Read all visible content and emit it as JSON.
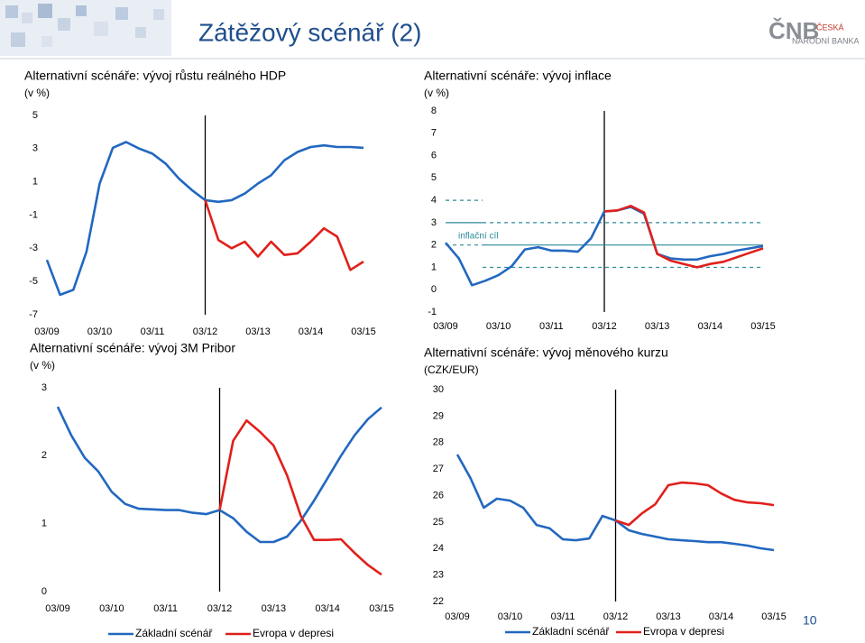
{
  "title": "Zátěžový scénář (2)",
  "logo": {
    "mark": "ČNB",
    "line1": "ČESKÁ",
    "line2": "NÁRODNÍ BANKA"
  },
  "page_number": "10",
  "chart_data": [
    {
      "type": "line",
      "title": "Alternativní scénáře: vývoj růstu reálného HDP",
      "subtitle": "(v %)",
      "categories": [
        "03/09",
        null,
        null,
        null,
        "03/10",
        null,
        null,
        null,
        "03/11",
        null,
        null,
        null,
        "03/12",
        null,
        null,
        null,
        "03/13",
        null,
        null,
        null,
        "03/14",
        null,
        null,
        null,
        "03/15"
      ],
      "series": [
        {
          "color": "#2268c0",
          "values": [
            -3.7,
            -5.8,
            -5.5,
            -3.2,
            0.9,
            3.05,
            3.4,
            3.0,
            2.7,
            2.1,
            1.2,
            0.5,
            -0.1,
            -0.2,
            -0.1,
            0.3,
            0.9,
            1.4,
            2.3,
            2.8,
            3.1,
            3.2,
            3.1,
            3.1,
            3.05
          ]
        },
        {
          "color": "#e0201b",
          "values": [
            null,
            null,
            null,
            null,
            null,
            null,
            null,
            null,
            null,
            null,
            null,
            null,
            -0.1,
            -2.5,
            -3.0,
            -2.6,
            -3.5,
            -2.6,
            -3.4,
            -3.3,
            -2.6,
            -1.8,
            -2.3,
            -4.3,
            -3.8
          ]
        }
      ],
      "ylim": [
        -7,
        5
      ],
      "yticks": [
        5,
        3,
        1,
        -1,
        -3,
        -5,
        -7
      ]
    },
    {
      "type": "line",
      "title": "Alternativní scénáře: vývoj inflace",
      "subtitle": "(v %)",
      "categories": [
        "03/09",
        null,
        null,
        null,
        "03/10",
        null,
        null,
        null,
        "03/11",
        null,
        null,
        null,
        "03/12",
        null,
        null,
        null,
        "03/13",
        null,
        null,
        null,
        "03/14",
        null,
        null,
        null,
        "03/15"
      ],
      "series": [
        {
          "color": "#2268c0",
          "values": [
            2.1,
            1.4,
            0.2,
            0.4,
            0.65,
            1.05,
            1.8,
            1.9,
            1.75,
            1.75,
            1.7,
            2.3,
            3.5,
            3.55,
            3.7,
            3.4,
            1.6,
            1.4,
            1.35,
            1.35,
            1.5,
            1.6,
            1.75,
            1.85,
            1.95
          ]
        },
        {
          "color": "#e0201b",
          "values": [
            null,
            null,
            null,
            null,
            null,
            null,
            null,
            null,
            null,
            null,
            null,
            null,
            3.5,
            3.55,
            3.75,
            3.45,
            1.6,
            1.3,
            1.15,
            1.0,
            1.15,
            1.25,
            1.45,
            1.65,
            1.85
          ]
        }
      ],
      "annotation": "inflační cíl",
      "target": {
        "color": "#2a8a9a",
        "periods": [
          {
            "from": 0,
            "to": 2.8,
            "center": 3,
            "tolerance": 1
          },
          {
            "from": 2.8,
            "to": 24,
            "center": 2,
            "tolerance": 1
          }
        ]
      },
      "ylim": [
        -1,
        8
      ],
      "yticks": [
        8,
        7,
        6,
        5,
        4,
        3,
        2,
        1,
        0,
        -1
      ]
    },
    {
      "type": "line",
      "title": "Alternativní scénáře: vývoj 3M Pribor",
      "subtitle": "(v %)",
      "categories": [
        "03/09",
        null,
        null,
        null,
        "03/10",
        null,
        null,
        null,
        "03/11",
        null,
        null,
        null,
        "03/12",
        null,
        null,
        null,
        "03/13",
        null,
        null,
        null,
        "03/14",
        null,
        null,
        null,
        "03/15"
      ],
      "series": [
        {
          "name": "Základní scénář",
          "color": "#2268c0",
          "values": [
            2.72,
            2.3,
            1.97,
            1.77,
            1.47,
            1.29,
            1.22,
            1.21,
            1.2,
            1.2,
            1.16,
            1.14,
            1.2,
            1.08,
            0.88,
            0.73,
            0.73,
            0.81,
            1.04,
            1.34,
            1.67,
            2.0,
            2.3,
            2.54,
            2.71
          ]
        },
        {
          "name": "Evropa v depresi",
          "color": "#e0201b",
          "values": [
            null,
            null,
            null,
            null,
            null,
            null,
            null,
            null,
            null,
            null,
            null,
            null,
            1.2,
            2.22,
            2.52,
            2.35,
            2.15,
            1.71,
            1.12,
            0.76,
            0.76,
            0.77,
            0.57,
            0.39,
            0.25
          ]
        }
      ],
      "legend": true,
      "ylim": [
        0,
        3
      ],
      "yticks": [
        3,
        2,
        1,
        0
      ]
    },
    {
      "type": "line",
      "title": "Alternativní scénáře: vývoj měnového kurzu",
      "subtitle": "(CZK/EUR)",
      "categories": [
        "03/09",
        null,
        null,
        null,
        "03/10",
        null,
        null,
        null,
        "03/11",
        null,
        null,
        null,
        "03/12",
        null,
        null,
        null,
        "03/13",
        null,
        null,
        null,
        "03/14",
        null,
        null,
        null,
        "03/15"
      ],
      "series": [
        {
          "name": "Základní scénář",
          "color": "#2268c0",
          "values": [
            27.55,
            26.66,
            25.54,
            25.88,
            25.81,
            25.54,
            24.89,
            24.76,
            24.35,
            24.31,
            24.38,
            25.23,
            25.06,
            24.69,
            24.55,
            24.45,
            24.35,
            24.31,
            24.28,
            24.24,
            24.24,
            24.18,
            24.11,
            24.01,
            23.94
          ]
        },
        {
          "name": "Evropa v depresi",
          "color": "#e0201b",
          "values": [
            null,
            null,
            null,
            null,
            null,
            null,
            null,
            null,
            null,
            null,
            null,
            null,
            25.06,
            24.89,
            25.33,
            25.67,
            26.39,
            26.49,
            26.46,
            26.39,
            26.08,
            25.84,
            25.74,
            25.71,
            25.64
          ]
        }
      ],
      "legend": true,
      "ylim": [
        22,
        30
      ],
      "yticks": [
        30,
        29,
        28,
        27,
        26,
        25,
        24,
        23,
        22
      ]
    }
  ]
}
